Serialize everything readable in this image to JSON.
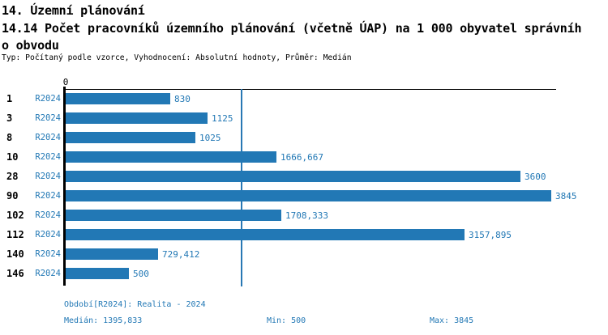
{
  "header": {
    "title_line1": "14. Územní plánování",
    "title_line2": "14.14 Počet pracovníků územního plánování (včetně ÚAP) na 1 000 obyvatel správníh",
    "title_line3": "o obvodu",
    "subtitle": "Typ: Počítaný podle vzorce, Vyhodnocení: Absolutní hodnoty, Průměr: Medián"
  },
  "colors": {
    "bar": "#2278b5",
    "blue_text": "#2278b5",
    "median_line": "#2878b4",
    "axis": "#000000"
  },
  "chart_data": {
    "type": "bar",
    "orientation": "horizontal",
    "title": "14.14 Počet pracovníků územního plánování (včetně ÚAP) na 1 000 obyvatel správního obvodu",
    "series_label": "R2024",
    "categories": [
      "1",
      "3",
      "8",
      "10",
      "28",
      "90",
      "102",
      "112",
      "140",
      "146"
    ],
    "values": [
      830,
      1125,
      1025,
      1666.667,
      3600,
      3845,
      1708.333,
      3157.895,
      729.412,
      500
    ],
    "value_labels": [
      "830",
      "1125",
      "1025",
      "1666,667",
      "3600",
      "3845",
      "1708,333",
      "3157,895",
      "729,412",
      "500"
    ],
    "xlim": [
      0,
      3845
    ],
    "zero_tick_label": "0",
    "median_value": 1395.833,
    "median_label": "1395,833",
    "grid": "single vertical median line",
    "legend_position": "none"
  },
  "footer": {
    "period_label": "Období[R2024]: Realita - 2024",
    "median_label": "Medián: 1395,833",
    "min_label": "Min: 500",
    "max_label": "Max: 3845"
  }
}
